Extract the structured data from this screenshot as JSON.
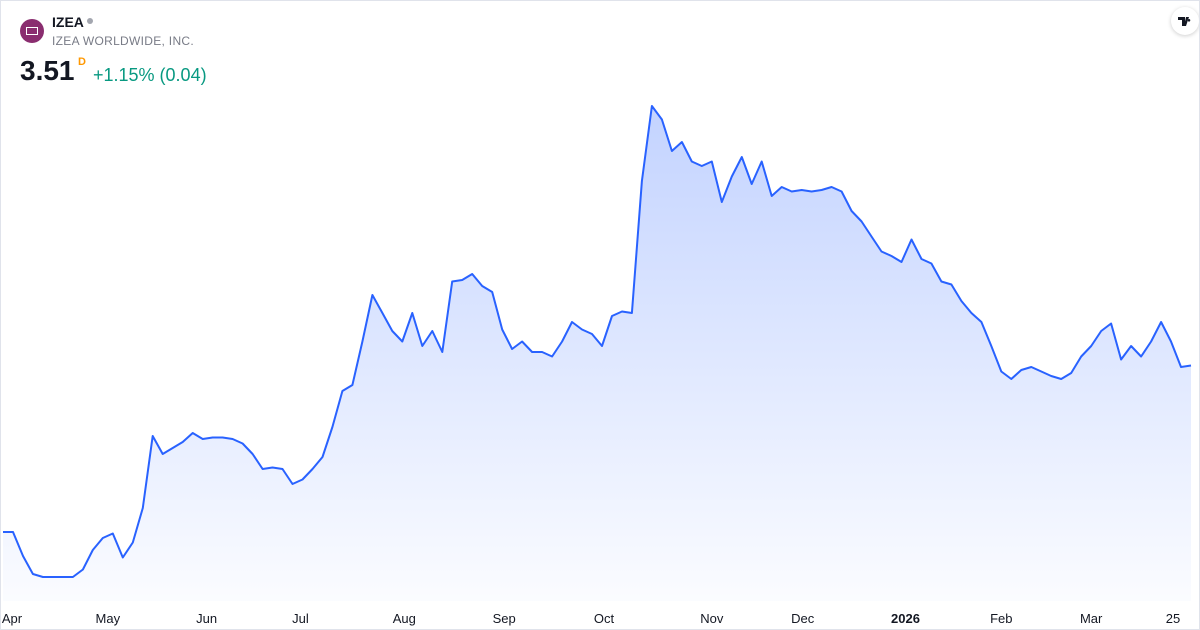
{
  "header": {
    "symbol": "IZEA",
    "name": "IZEA WORLDWIDE, INC.",
    "price": 3.51,
    "interval": "D",
    "change": "+1.15% (0.04)"
  },
  "chart_data": {
    "type": "area",
    "color": "#2962ff",
    "values": [
      2.4,
      2.4,
      2.24,
      2.12,
      2.1,
      2.1,
      2.1,
      2.1,
      2.15,
      2.28,
      2.36,
      2.39,
      2.23,
      2.33,
      2.56,
      3.04,
      2.92,
      2.96,
      3.0,
      3.06,
      3.02,
      3.03,
      3.03,
      3.02,
      2.99,
      2.92,
      2.82,
      2.83,
      2.82,
      2.72,
      2.75,
      2.82,
      2.9,
      3.1,
      3.34,
      3.38,
      3.67,
      3.98,
      3.86,
      3.74,
      3.67,
      3.86,
      3.64,
      3.74,
      3.6,
      4.07,
      4.08,
      4.12,
      4.04,
      4.0,
      3.75,
      3.62,
      3.67,
      3.6,
      3.6,
      3.57,
      3.67,
      3.8,
      3.75,
      3.72,
      3.64,
      3.84,
      3.87,
      3.86,
      4.74,
      5.24,
      5.15,
      4.94,
      5.0,
      4.87,
      4.84,
      4.87,
      4.6,
      4.77,
      4.9,
      4.72,
      4.87,
      4.64,
      4.7,
      4.67,
      4.68,
      4.67,
      4.68,
      4.7,
      4.67,
      4.54,
      4.47,
      4.37,
      4.27,
      4.24,
      4.2,
      4.35,
      4.22,
      4.19,
      4.07,
      4.05,
      3.94,
      3.86,
      3.8,
      3.64,
      3.47,
      3.42,
      3.48,
      3.5,
      3.47,
      3.44,
      3.42,
      3.46,
      3.57,
      3.64,
      3.74,
      3.79,
      3.55,
      3.64,
      3.57,
      3.67,
      3.8,
      3.67,
      3.5,
      3.51
    ],
    "xlim": [
      0,
      119
    ],
    "ylim": [
      1.74,
      5.94
    ],
    "xticks": [
      {
        "value": 0.9,
        "label": "Apr"
      },
      {
        "value": 10.5,
        "label": "May"
      },
      {
        "value": 20.4,
        "label": "Jun"
      },
      {
        "value": 29.8,
        "label": "Jul"
      },
      {
        "value": 40.2,
        "label": "Aug"
      },
      {
        "value": 50.2,
        "label": "Sep"
      },
      {
        "value": 60.2,
        "label": "Oct"
      },
      {
        "value": 71,
        "label": "Nov"
      },
      {
        "value": 80.1,
        "label": "Dec"
      },
      {
        "value": 90.4,
        "label": "2026"
      },
      {
        "value": 100,
        "label": "Feb"
      },
      {
        "value": 109,
        "label": "Mar"
      },
      {
        "value": 117.2,
        "label": "25"
      }
    ]
  }
}
